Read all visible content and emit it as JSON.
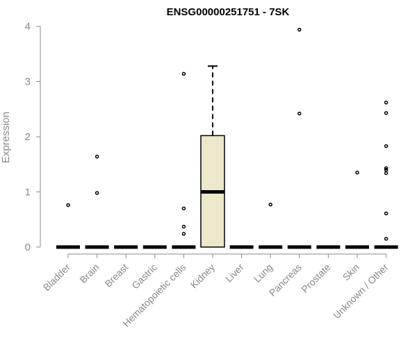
{
  "chart_data": {
    "type": "box",
    "title": "ENSG00000251751 - 7SK",
    "xlabel": "",
    "ylabel": "Expression",
    "ylim": [
      0,
      4
    ],
    "yticks": [
      0,
      1,
      2,
      3,
      4
    ],
    "grid": false,
    "colors": {
      "box_fill": "#ede8cc",
      "stroke": "#000000",
      "axis": "#888888",
      "text": "#888888"
    },
    "categories": [
      "Bladder",
      "Brain",
      "Breast",
      "Gastric",
      "Hematopoietic cells",
      "Kidney",
      "Liver",
      "Lung",
      "Pancreas",
      "Prostate",
      "Skin",
      "Unknown / Other"
    ],
    "boxes": [
      {
        "category": "Bladder",
        "min": 0,
        "q1": 0,
        "median": 0,
        "q3": 0,
        "max": 0,
        "outliers": [
          0.76
        ]
      },
      {
        "category": "Brain",
        "min": 0,
        "q1": 0,
        "median": 0,
        "q3": 0,
        "max": 0,
        "outliers": [
          0.98,
          1.64
        ]
      },
      {
        "category": "Breast",
        "min": 0,
        "q1": 0,
        "median": 0,
        "q3": 0,
        "max": 0,
        "outliers": []
      },
      {
        "category": "Gastric",
        "min": 0,
        "q1": 0,
        "median": 0,
        "q3": 0,
        "max": 0,
        "outliers": []
      },
      {
        "category": "Hematopoietic cells",
        "min": 0,
        "q1": 0,
        "median": 0,
        "q3": 0,
        "max": 0,
        "outliers": [
          0.24,
          0.37,
          0.7,
          3.14
        ]
      },
      {
        "category": "Kidney",
        "min": 0,
        "q1": 0,
        "median": 1.0,
        "q3": 2.02,
        "max": 3.28,
        "outliers": []
      },
      {
        "category": "Liver",
        "min": 0,
        "q1": 0,
        "median": 0,
        "q3": 0,
        "max": 0,
        "outliers": []
      },
      {
        "category": "Lung",
        "min": 0,
        "q1": 0,
        "median": 0,
        "q3": 0,
        "max": 0,
        "outliers": [
          0.77
        ]
      },
      {
        "category": "Pancreas",
        "min": 0,
        "q1": 0,
        "median": 0,
        "q3": 0,
        "max": 0,
        "outliers": [
          2.42,
          3.94
        ]
      },
      {
        "category": "Prostate",
        "min": 0,
        "q1": 0,
        "median": 0,
        "q3": 0,
        "max": 0,
        "outliers": []
      },
      {
        "category": "Skin",
        "min": 0,
        "q1": 0,
        "median": 0,
        "q3": 0,
        "max": 0,
        "outliers": [
          1.35
        ]
      },
      {
        "category": "Unknown / Other",
        "min": 0,
        "q1": 0,
        "median": 0,
        "q3": 0,
        "max": 0,
        "outliers": [
          0.15,
          0.61,
          1.34,
          1.4,
          1.43,
          1.83,
          2.43,
          2.62
        ]
      }
    ]
  }
}
